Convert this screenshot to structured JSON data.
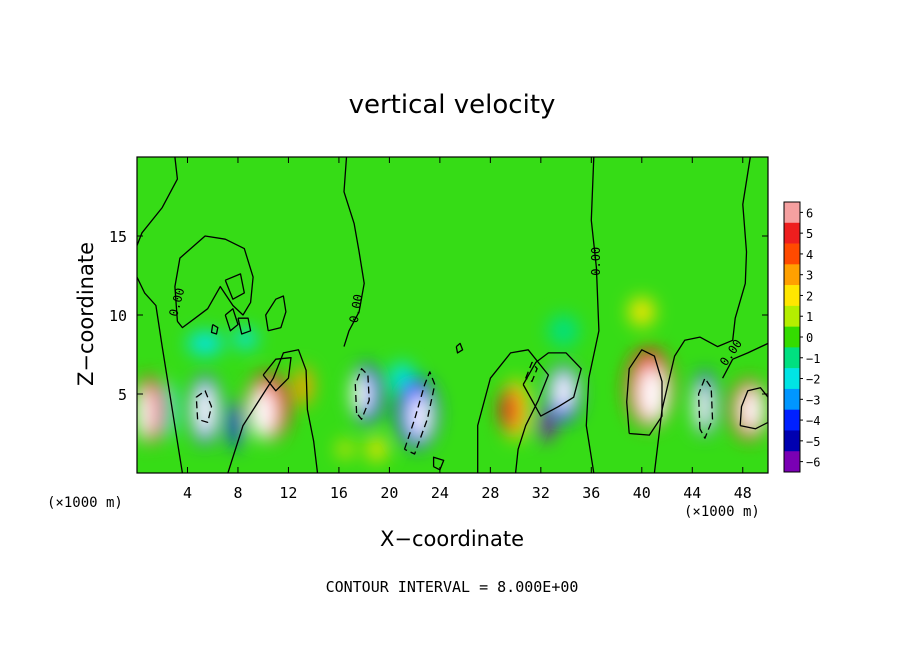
{
  "chart_data": {
    "type": "heatmap",
    "title": "vertical velocity",
    "xlabel": "X−coordinate",
    "ylabel": "Z−coordinate",
    "x_unit_left": "(×1000 m)",
    "x_unit_right": "(×1000 m)",
    "footnote": "CONTOUR INTERVAL = 8.000E+00",
    "xlim": [
      0,
      50
    ],
    "ylim": [
      0,
      20
    ],
    "xticks": [
      4,
      8,
      12,
      16,
      20,
      24,
      28,
      32,
      36,
      40,
      44,
      48
    ],
    "xtick_labels": [
      "4",
      "8",
      "12",
      "16",
      "20",
      "24",
      "28",
      "32",
      "36",
      "40",
      "44",
      "48"
    ],
    "yticks": [
      5,
      10,
      15
    ],
    "ytick_labels": [
      "5",
      "10",
      "15"
    ],
    "colorbar": {
      "levels": [
        6,
        5,
        4,
        3,
        2,
        1,
        0,
        -1,
        -2,
        -3,
        -4,
        -5,
        -6
      ],
      "labels": [
        "6",
        "5",
        "4",
        "3",
        "2",
        "1",
        "0",
        "−1",
        "−2",
        "−3",
        "−4",
        "−5",
        "−6"
      ],
      "colors": [
        "#f5a0a0",
        "#ee1e1e",
        "#ff4a00",
        "#ffa000",
        "#ffe600",
        "#b4ee00",
        "#34dc00",
        "#00e080",
        "#00e4e4",
        "#0096ff",
        "#0020ff",
        "#0000b0",
        "#7a00b4"
      ]
    },
    "background_color": "#36dc16",
    "contour_labels": [
      {
        "text": "0.00",
        "x": 3.2,
        "y": 10.8,
        "angle": -75
      },
      {
        "text": "0.00",
        "x": 17.4,
        "y": 10.4,
        "angle": -80
      },
      {
        "text": "0.00",
        "x": 36.4,
        "y": 13.4,
        "angle": -90
      },
      {
        "text": "0.00",
        "x": 47.1,
        "y": 7.6,
        "angle": -55
      }
    ],
    "cells": [
      {
        "x": 0.6,
        "y": 3.8,
        "sx": 1.3,
        "sy": 3.3,
        "v": -7
      },
      {
        "x": 1.0,
        "y": 4.0,
        "sx": 2.4,
        "sy": 4.2,
        "v": 4.5
      },
      {
        "x": 2.4,
        "y": 4.0,
        "sx": 1.3,
        "sy": 3.5,
        "v": -2
      },
      {
        "x": 5.4,
        "y": 4.0,
        "sx": 1.6,
        "sy": 3.3,
        "v": -7
      },
      {
        "x": 5.4,
        "y": 4.0,
        "sx": 2.4,
        "sy": 4.3,
        "v": -4.5
      },
      {
        "x": 5.4,
        "y": 8.2,
        "sx": 2.8,
        "sy": 1.5,
        "v": -2
      },
      {
        "x": 8.6,
        "y": 8.5,
        "sx": 1.8,
        "sy": 1.3,
        "v": -2
      },
      {
        "x": 10.0,
        "y": 3.8,
        "sx": 2.0,
        "sy": 3.2,
        "v": 7
      },
      {
        "x": 10.4,
        "y": 4.2,
        "sx": 3.4,
        "sy": 4.2,
        "v": 4.5
      },
      {
        "x": 13.2,
        "y": 5.5,
        "sx": 1.4,
        "sy": 2.5,
        "v": 2.5
      },
      {
        "x": 7.8,
        "y": 3.0,
        "sx": 1.0,
        "sy": 3.0,
        "v": -4
      },
      {
        "x": 17.8,
        "y": 5.0,
        "sx": 1.4,
        "sy": 2.5,
        "v": -7
      },
      {
        "x": 18.2,
        "y": 5.0,
        "sx": 2.4,
        "sy": 3.7,
        "v": -4
      },
      {
        "x": 22.4,
        "y": 3.6,
        "sx": 1.6,
        "sy": 2.8,
        "v": -7
      },
      {
        "x": 22.2,
        "y": 3.8,
        "sx": 3.2,
        "sy": 4.4,
        "v": -4.5
      },
      {
        "x": 21.0,
        "y": 6.0,
        "sx": 2.0,
        "sy": 2.0,
        "v": -2
      },
      {
        "x": 19.0,
        "y": 1.5,
        "sx": 1.5,
        "sy": 1.5,
        "v": 2
      },
      {
        "x": 16.5,
        "y": 1.5,
        "sx": 1.2,
        "sy": 1.0,
        "v": 2
      },
      {
        "x": 29.6,
        "y": 4.0,
        "sx": 1.6,
        "sy": 3.0,
        "v": 4.5
      },
      {
        "x": 30.0,
        "y": 4.0,
        "sx": 2.2,
        "sy": 3.8,
        "v": 2
      },
      {
        "x": 33.8,
        "y": 5.2,
        "sx": 1.6,
        "sy": 2.4,
        "v": -7
      },
      {
        "x": 33.8,
        "y": 5.0,
        "sx": 2.6,
        "sy": 3.6,
        "v": -4
      },
      {
        "x": 32.4,
        "y": 3.0,
        "sx": 1.2,
        "sy": 2.0,
        "v": -6
      },
      {
        "x": 33.8,
        "y": 9.0,
        "sx": 2.4,
        "sy": 2.0,
        "v": -1.5
      },
      {
        "x": 40.8,
        "y": 5.0,
        "sx": 2.2,
        "sy": 3.5,
        "v": 7
      },
      {
        "x": 40.6,
        "y": 5.4,
        "sx": 3.6,
        "sy": 5.0,
        "v": 4.5
      },
      {
        "x": 40.0,
        "y": 10.2,
        "sx": 2.0,
        "sy": 1.8,
        "v": 1.5
      },
      {
        "x": 44.9,
        "y": 4.2,
        "sx": 1.2,
        "sy": 3.0,
        "v": -7
      },
      {
        "x": 45.0,
        "y": 4.4,
        "sx": 1.8,
        "sy": 4.0,
        "v": -4
      },
      {
        "x": 48.7,
        "y": 4.0,
        "sx": 1.8,
        "sy": 2.7,
        "v": 7
      },
      {
        "x": 48.5,
        "y": 4.0,
        "sx": 2.8,
        "sy": 3.8,
        "v": 4.5
      }
    ],
    "contours": [
      {
        "style": "solid",
        "points": [
          [
            3.0,
            20
          ],
          [
            3.2,
            18.6
          ],
          [
            2.0,
            16.8
          ],
          [
            0.4,
            15.2
          ],
          [
            0,
            14.4
          ]
        ]
      },
      {
        "style": "solid",
        "points": [
          [
            0,
            12.4
          ],
          [
            0.6,
            11.4
          ],
          [
            1.5,
            10.6
          ],
          [
            2.0,
            8.0
          ],
          [
            2.6,
            5.0
          ],
          [
            3.3,
            1.5
          ],
          [
            3.6,
            0
          ]
        ]
      },
      {
        "style": "solid",
        "points": [
          [
            3.2,
            9.6
          ],
          [
            3.0,
            11.8
          ],
          [
            3.4,
            13.6
          ],
          [
            5.4,
            15.0
          ],
          [
            7.0,
            14.8
          ],
          [
            8.5,
            14.2
          ],
          [
            9.2,
            12.4
          ],
          [
            9.0,
            10.8
          ],
          [
            8.4,
            10.0
          ],
          [
            7.6,
            10.6
          ],
          [
            6.6,
            11.8
          ],
          [
            5.6,
            10.4
          ],
          [
            4.6,
            9.8
          ],
          [
            3.6,
            9.2
          ],
          [
            3.2,
            9.6
          ]
        ]
      },
      {
        "style": "solid",
        "points": [
          [
            7.0,
            12.2
          ],
          [
            8.2,
            12.6
          ],
          [
            8.5,
            11.4
          ],
          [
            7.6,
            11.0
          ],
          [
            7.0,
            12.2
          ]
        ]
      },
      {
        "style": "solid",
        "points": [
          [
            10.4,
            9.0
          ],
          [
            10.2,
            10.0
          ],
          [
            11.0,
            11.0
          ],
          [
            11.6,
            11.2
          ],
          [
            11.8,
            10.2
          ],
          [
            11.4,
            9.2
          ],
          [
            10.4,
            9.0
          ]
        ]
      },
      {
        "style": "solid",
        "points": [
          [
            7.0,
            10.0
          ],
          [
            7.6,
            10.4
          ],
          [
            8.0,
            9.4
          ],
          [
            7.4,
            9.0
          ],
          [
            7.0,
            10.0
          ]
        ]
      },
      {
        "style": "solid",
        "points": [
          [
            8.0,
            9.8
          ],
          [
            8.8,
            9.8
          ],
          [
            9.0,
            9.0
          ],
          [
            8.3,
            8.8
          ],
          [
            8.0,
            9.8
          ]
        ]
      },
      {
        "style": "solid",
        "points": [
          [
            6.0,
            9.4
          ],
          [
            6.4,
            9.2
          ],
          [
            6.3,
            8.8
          ],
          [
            5.9,
            8.9
          ],
          [
            6.0,
            9.4
          ]
        ]
      },
      {
        "style": "solid",
        "points": [
          [
            7.2,
            0
          ],
          [
            8.4,
            3.0
          ],
          [
            10.8,
            6.0
          ],
          [
            11.6,
            7.6
          ],
          [
            12.8,
            7.8
          ],
          [
            13.4,
            6.5
          ],
          [
            13.5,
            4.0
          ],
          [
            14.0,
            2.0
          ],
          [
            14.3,
            0
          ]
        ]
      },
      {
        "style": "solid",
        "points": [
          [
            10.0,
            6.2
          ],
          [
            11.0,
            7.2
          ],
          [
            12.2,
            7.3
          ],
          [
            12.0,
            6.0
          ],
          [
            11.0,
            5.2
          ],
          [
            10.0,
            6.2
          ]
        ]
      },
      {
        "style": "solid",
        "points": [
          [
            16.6,
            20
          ],
          [
            16.4,
            17.8
          ],
          [
            17.2,
            15.8
          ],
          [
            17.6,
            14.0
          ],
          [
            18.0,
            12.0
          ],
          [
            17.6,
            10.2
          ],
          [
            16.8,
            9.0
          ],
          [
            16.4,
            8.0
          ]
        ]
      },
      {
        "style": "solid",
        "points": [
          [
            23.5,
            0.4
          ],
          [
            23.5,
            1.0
          ],
          [
            24.3,
            0.8
          ],
          [
            24.0,
            0.2
          ],
          [
            23.5,
            0.4
          ]
        ]
      },
      {
        "style": "solid",
        "points": [
          [
            25.3,
            8.0
          ],
          [
            25.6,
            8.2
          ],
          [
            25.8,
            7.8
          ],
          [
            25.4,
            7.6
          ],
          [
            25.3,
            8.0
          ]
        ]
      },
      {
        "style": "solid",
        "points": [
          [
            27.0,
            0
          ],
          [
            27.0,
            3.0
          ],
          [
            28.0,
            6.0
          ],
          [
            29.6,
            7.6
          ],
          [
            31.0,
            7.8
          ],
          [
            32.6,
            6.2
          ],
          [
            31.8,
            4.6
          ],
          [
            30.8,
            3.0
          ],
          [
            30.2,
            1.5
          ],
          [
            30.0,
            0
          ]
        ]
      },
      {
        "style": "solid",
        "points": [
          [
            36.2,
            20
          ],
          [
            36.0,
            16.0
          ],
          [
            36.4,
            13.0
          ],
          [
            36.6,
            9.0
          ],
          [
            35.8,
            6.0
          ],
          [
            35.6,
            3.0
          ],
          [
            36.0,
            1.0
          ],
          [
            36.2,
            0
          ]
        ]
      },
      {
        "style": "solid",
        "points": [
          [
            30.6,
            5.6
          ],
          [
            31.6,
            7.0
          ],
          [
            32.6,
            7.6
          ],
          [
            34.0,
            7.6
          ],
          [
            35.2,
            6.6
          ],
          [
            34.6,
            4.8
          ],
          [
            33.4,
            4.2
          ],
          [
            32.0,
            3.6
          ],
          [
            30.6,
            5.6
          ]
        ]
      },
      {
        "style": "solid",
        "points": [
          [
            41.0,
            0
          ],
          [
            41.6,
            4.0
          ],
          [
            42.6,
            7.4
          ],
          [
            43.4,
            8.4
          ],
          [
            44.6,
            8.6
          ],
          [
            46.0,
            8.0
          ],
          [
            47.2,
            8.4
          ],
          [
            47.4,
            9.8
          ],
          [
            48.2,
            12.0
          ],
          [
            48.3,
            14.0
          ],
          [
            48.0,
            17.0
          ],
          [
            48.6,
            20
          ]
        ]
      },
      {
        "style": "solid",
        "points": [
          [
            39.0,
            2.5
          ],
          [
            38.8,
            4.5
          ],
          [
            39.0,
            6.6
          ],
          [
            40.0,
            7.8
          ],
          [
            41.0,
            7.4
          ],
          [
            41.6,
            5.8
          ],
          [
            41.6,
            3.6
          ],
          [
            40.6,
            2.4
          ],
          [
            39.0,
            2.5
          ]
        ]
      },
      {
        "style": "solid",
        "points": [
          [
            47.8,
            3.0
          ],
          [
            47.9,
            4.2
          ],
          [
            48.4,
            5.2
          ],
          [
            49.4,
            5.4
          ],
          [
            50,
            4.8
          ],
          [
            50,
            3.2
          ],
          [
            49.0,
            2.8
          ],
          [
            47.8,
            3.0
          ]
        ]
      },
      {
        "style": "solid",
        "points": [
          [
            46.4,
            6.0
          ],
          [
            47.2,
            7.2
          ],
          [
            48.4,
            7.6
          ],
          [
            50,
            8.2
          ]
        ]
      },
      {
        "style": "dashed",
        "points": [
          [
            4.8,
            3.4
          ],
          [
            4.7,
            4.8
          ],
          [
            5.4,
            5.2
          ],
          [
            5.9,
            4.2
          ],
          [
            5.6,
            3.2
          ],
          [
            4.8,
            3.4
          ]
        ]
      },
      {
        "style": "dashed",
        "points": [
          [
            17.4,
            3.8
          ],
          [
            17.3,
            5.6
          ],
          [
            17.8,
            6.6
          ],
          [
            18.3,
            6.2
          ],
          [
            18.4,
            4.6
          ],
          [
            17.8,
            3.4
          ],
          [
            17.4,
            3.8
          ]
        ]
      },
      {
        "style": "dashed",
        "points": [
          [
            21.2,
            1.5
          ],
          [
            22.0,
            3.4
          ],
          [
            22.8,
            5.6
          ],
          [
            23.2,
            6.4
          ],
          [
            23.6,
            5.6
          ],
          [
            23.0,
            3.4
          ],
          [
            22.0,
            1.2
          ],
          [
            21.2,
            1.5
          ]
        ]
      },
      {
        "style": "dashed",
        "points": [
          [
            44.6,
            2.8
          ],
          [
            44.5,
            5.0
          ],
          [
            45.0,
            6.0
          ],
          [
            45.5,
            5.4
          ],
          [
            45.6,
            3.4
          ],
          [
            45.0,
            2.2
          ],
          [
            44.6,
            2.8
          ]
        ]
      },
      {
        "style": "dashed",
        "points": [
          [
            30.8,
            6.0
          ],
          [
            31.3,
            7.0
          ],
          [
            31.7,
            6.6
          ],
          [
            31.3,
            5.8
          ],
          [
            30.8,
            6.0
          ]
        ]
      }
    ]
  }
}
